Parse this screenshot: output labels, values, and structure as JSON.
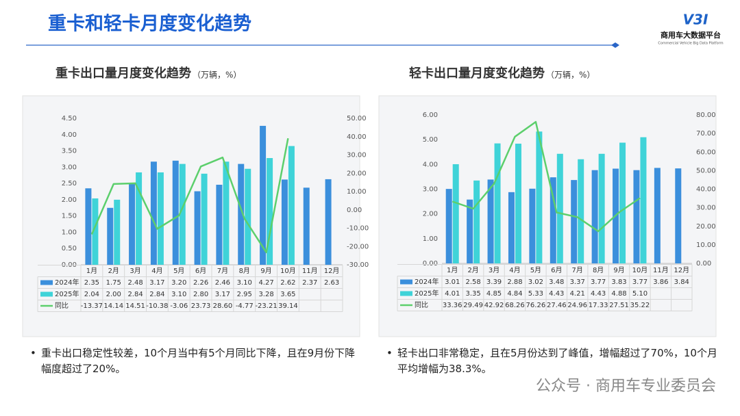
{
  "header": {
    "title": "重卡和轻卡月度变化趋势",
    "logo_mark": "V3I",
    "logo_text": "商用车大数据平台",
    "logo_subtext": "Commercial Vehicle Big Data Platform"
  },
  "chart_data": [
    {
      "type": "bar",
      "title": "重卡出口量月度变化趋势",
      "unit": "（万辆，%）",
      "categories": [
        "1月",
        "2月",
        "3月",
        "4月",
        "5月",
        "6月",
        "7月",
        "8月",
        "9月",
        "10月",
        "11月",
        "12月"
      ],
      "series": [
        {
          "name": "2024年",
          "color": "#3b8fdc",
          "type": "bar",
          "values": [
            2.35,
            1.75,
            2.48,
            3.17,
            3.2,
            2.26,
            2.46,
            3.1,
            4.27,
            2.62,
            2.37,
            2.63
          ],
          "value_labels": [
            "2.35",
            "1.75",
            "2.48",
            "3.17",
            "3.20",
            "2.26",
            "2.46",
            "3.10",
            "4.27",
            "2.62",
            "2.37",
            "2.63"
          ]
        },
        {
          "name": "2025年",
          "color": "#3fd3d8",
          "type": "bar",
          "values": [
            2.04,
            2.0,
            2.84,
            2.84,
            3.1,
            2.8,
            3.17,
            2.95,
            3.28,
            3.65,
            null,
            null
          ],
          "value_labels": [
            "2.04",
            "2.00",
            "2.84",
            "2.84",
            "3.10",
            "2.80",
            "3.17",
            "2.95",
            "3.28",
            "3.65",
            null,
            null
          ]
        },
        {
          "name": "同比",
          "color": "#5ccf6c",
          "type": "line",
          "axis": "y2",
          "values": [
            -13.37,
            14.14,
            14.51,
            -10.38,
            -3.06,
            23.73,
            28.6,
            -4.77,
            -23.21,
            39.14,
            null,
            null
          ],
          "value_labels": [
            "-13.37",
            "14.14",
            "14.51",
            "-10.38",
            "-3.06",
            "23.73",
            "28.60",
            "-4.77",
            "-23.21",
            "39.14",
            null,
            null
          ]
        }
      ],
      "ylim": [
        0,
        4.5
      ],
      "yticks": [
        {
          "value": 0,
          "label": "0.00"
        },
        {
          "value": 0.5,
          "label": "0.50"
        },
        {
          "value": 1,
          "label": "1.00"
        },
        {
          "value": 1.5,
          "label": "1.50"
        },
        {
          "value": 2,
          "label": "2.00"
        },
        {
          "value": 2.5,
          "label": "2.50"
        },
        {
          "value": 3,
          "label": "3.00"
        },
        {
          "value": 3.5,
          "label": "3.50"
        },
        {
          "value": 4,
          "label": "4.00"
        },
        {
          "value": 4.5,
          "label": "4.50"
        }
      ],
      "y2lim": [
        -30,
        50
      ],
      "y2ticks": [
        {
          "value": -30,
          "label": "-30.00"
        },
        {
          "value": -20,
          "label": "-20.00"
        },
        {
          "value": -10,
          "label": "-10.00"
        },
        {
          "value": 0,
          "label": "0.00"
        },
        {
          "value": 10,
          "label": "10.00"
        },
        {
          "value": 20,
          "label": "20.00"
        },
        {
          "value": 30,
          "label": "30.00"
        },
        {
          "value": 40,
          "label": "40.00"
        },
        {
          "value": 50,
          "label": "50.00"
        }
      ],
      "grid": false
    },
    {
      "type": "bar",
      "title": "轻卡出口量月度变化趋势",
      "unit": "（万辆，%）",
      "categories": [
        "1月",
        "2月",
        "3月",
        "4月",
        "5月",
        "6月",
        "7月",
        "8月",
        "9月",
        "10月",
        "11月",
        "12月"
      ],
      "series": [
        {
          "name": "2024年",
          "color": "#3b8fdc",
          "type": "bar",
          "values": [
            3.01,
            2.58,
            3.39,
            2.88,
            3.02,
            3.48,
            3.37,
            3.77,
            3.83,
            3.77,
            3.86,
            3.84
          ],
          "value_labels": [
            "3.01",
            "2.58",
            "3.39",
            "2.88",
            "3.02",
            "3.48",
            "3.37",
            "3.77",
            "3.83",
            "3.77",
            "3.86",
            "3.84"
          ]
        },
        {
          "name": "2025年",
          "color": "#3fd3d8",
          "type": "bar",
          "values": [
            4.01,
            3.35,
            4.85,
            4.84,
            5.33,
            4.43,
            4.21,
            4.43,
            4.88,
            5.1,
            null,
            null
          ],
          "value_labels": [
            "4.01",
            "3.35",
            "4.85",
            "4.84",
            "5.33",
            "4.43",
            "4.21",
            "4.43",
            "4.88",
            "5.10",
            null,
            null
          ]
        },
        {
          "name": "同比",
          "color": "#5ccf6c",
          "type": "line",
          "axis": "y2",
          "values": [
            33.36,
            29.49,
            42.92,
            68.26,
            76.26,
            27.46,
            24.96,
            17.33,
            27.51,
            35.22,
            null,
            null
          ],
          "value_labels": [
            "33.36",
            "29.49",
            "42.92",
            "68.26",
            "76.26",
            "27.46",
            "24.96",
            "17.33",
            "27.51",
            "35.22",
            null,
            null
          ]
        }
      ],
      "ylim": [
        0,
        6
      ],
      "yticks": [
        {
          "value": 0,
          "label": "0.00"
        },
        {
          "value": 1,
          "label": "1.00"
        },
        {
          "value": 2,
          "label": "2.00"
        },
        {
          "value": 3,
          "label": "3.00"
        },
        {
          "value": 4,
          "label": "4.00"
        },
        {
          "value": 5,
          "label": "5.00"
        },
        {
          "value": 6,
          "label": "6.00"
        }
      ],
      "y2lim": [
        0,
        80
      ],
      "y2ticks": [
        {
          "value": 0,
          "label": "0.00"
        },
        {
          "value": 10,
          "label": "10.00"
        },
        {
          "value": 20,
          "label": "20.00"
        },
        {
          "value": 30,
          "label": "30.00"
        },
        {
          "value": 40,
          "label": "40.00"
        },
        {
          "value": 50,
          "label": "50.00"
        },
        {
          "value": 60,
          "label": "60.00"
        },
        {
          "value": 70,
          "label": "70.00"
        },
        {
          "value": 80,
          "label": "80.00"
        }
      ],
      "grid": false
    }
  ],
  "bullets": [
    "重卡出口稳定性较差，10个月当中有5个月同比下降，且在9月份下降幅度超过了20%。",
    "轻卡出口非常稳定，且在5月份达到了峰值，增幅超过了70%，10个月平均增幅为38.3%。"
  ],
  "watermark": "公众号 · 商用车专业委员会"
}
